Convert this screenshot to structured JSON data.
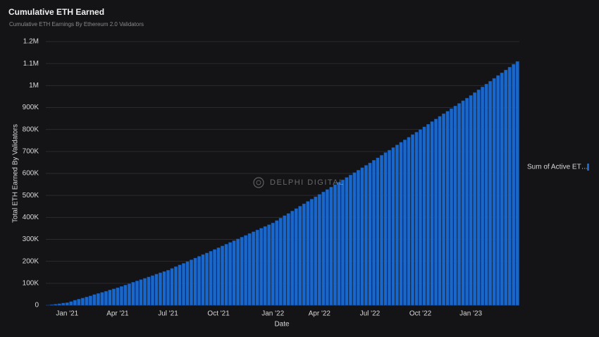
{
  "chart_data": {
    "type": "bar",
    "title": "Cumulative ETH Earned",
    "subtitle": "Cumulative ETH Earnings By Ethereum 2.0 Validators",
    "x_label": "Date",
    "y_label": "Total ETH Earned By Validators",
    "watermark": "DELPHI DIGITAL",
    "legend_position": "right",
    "grid": true,
    "categories": [
      null,
      null,
      null,
      null,
      null,
      "Jan '21",
      null,
      null,
      null,
      null,
      null,
      null,
      null,
      null,
      null,
      null,
      null,
      null,
      "Apr '21",
      null,
      null,
      null,
      null,
      null,
      null,
      null,
      null,
      null,
      null,
      null,
      null,
      "Jul '21",
      null,
      null,
      null,
      null,
      null,
      null,
      null,
      null,
      null,
      null,
      null,
      null,
      "Oct '21",
      null,
      null,
      null,
      null,
      null,
      null,
      null,
      null,
      null,
      null,
      null,
      null,
      null,
      "Jan '22",
      null,
      null,
      null,
      null,
      null,
      null,
      null,
      null,
      null,
      null,
      null,
      "Apr '22",
      null,
      null,
      null,
      null,
      null,
      null,
      null,
      null,
      null,
      null,
      null,
      null,
      "Jul '22",
      null,
      null,
      null,
      null,
      null,
      null,
      null,
      null,
      null,
      null,
      null,
      null,
      "Oct '22",
      null,
      null,
      null,
      null,
      null,
      null,
      null,
      null,
      null,
      null,
      null,
      null,
      "Jan '23",
      null,
      null,
      null,
      null,
      null,
      null,
      null,
      null,
      null,
      null,
      null,
      null
    ],
    "series": [
      {
        "name": "Sum of Active ET…",
        "color": "#1a67cc",
        "values": [
          1000,
          3000,
          5000,
          7000,
          10000,
          12000,
          17000,
          23000,
          28000,
          33000,
          38000,
          43000,
          49000,
          54000,
          59000,
          64000,
          70000,
          75000,
          80000,
          86000,
          92000,
          98000,
          105000,
          111000,
          117000,
          123000,
          129000,
          135000,
          142000,
          148000,
          154000,
          160000,
          168000,
          176000,
          184000,
          191000,
          199000,
          207000,
          215000,
          223000,
          231000,
          238000,
          246000,
          254000,
          262000,
          270000,
          278000,
          286000,
          294000,
          302000,
          310000,
          318000,
          327000,
          335000,
          343000,
          351000,
          359000,
          367000,
          375000,
          386000,
          397000,
          408000,
          418000,
          429000,
          440000,
          451000,
          462000,
          473000,
          483000,
          494000,
          505000,
          516000,
          527000,
          538000,
          549000,
          560000,
          571000,
          582000,
          593000,
          604000,
          615000,
          626000,
          637000,
          648000,
          660000,
          671000,
          683000,
          695000,
          706000,
          718000,
          730000,
          742000,
          753000,
          765000,
          777000,
          788000,
          800000,
          812000,
          824000,
          836000,
          848000,
          860000,
          872000,
          883000,
          895000,
          907000,
          919000,
          931000,
          943000,
          955000,
          968000,
          981000,
          994000,
          1007000,
          1020000,
          1033000,
          1046000,
          1058000,
          1071000,
          1084000,
          1097000,
          1110000
        ]
      }
    ],
    "ylim": [
      0,
      1200000
    ],
    "yticks": [
      0,
      {
        "value": 100000,
        "label": "100K"
      },
      {
        "value": 200000,
        "label": "200K"
      },
      {
        "value": 300000,
        "label": "300K"
      },
      {
        "value": 400000,
        "label": "400K"
      },
      {
        "value": 500000,
        "label": "500K"
      },
      {
        "value": 600000,
        "label": "600K"
      },
      {
        "value": 700000,
        "label": "700K"
      },
      {
        "value": 800000,
        "label": "800K"
      },
      {
        "value": 900000,
        "label": "900K"
      },
      {
        "value": 1000000,
        "label": "1M"
      },
      {
        "value": 1100000,
        "label": "1.1M"
      },
      {
        "value": 1200000,
        "label": "1.2M"
      }
    ]
  }
}
